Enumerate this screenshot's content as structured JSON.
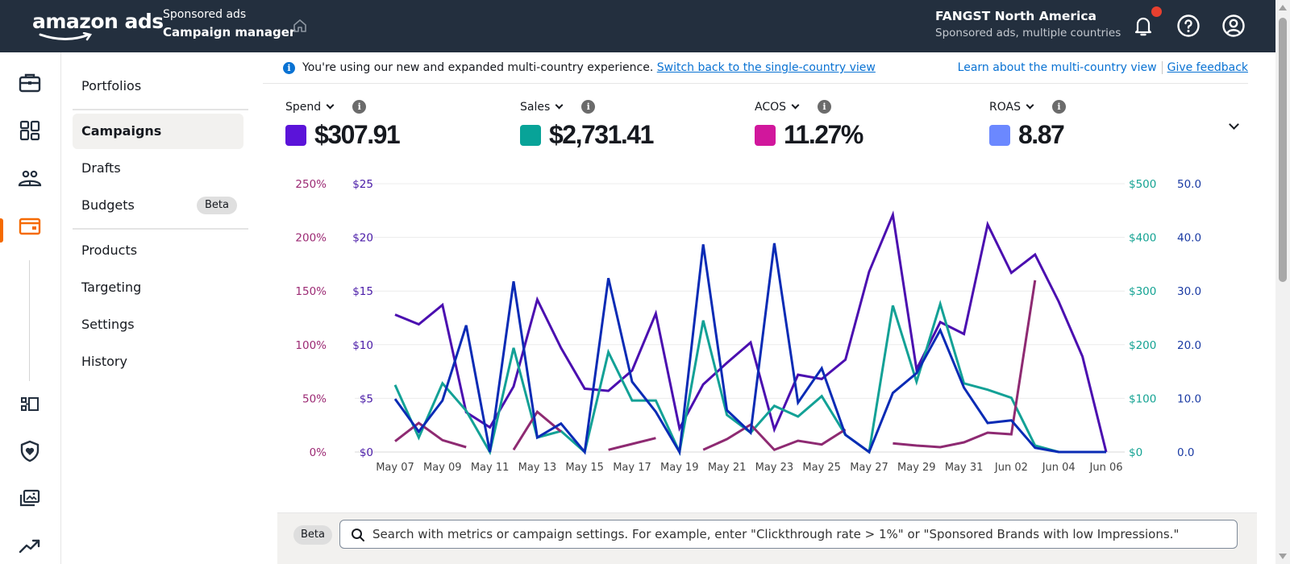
{
  "header": {
    "logo": "amazon ads",
    "app_subtitle": "Sponsored ads",
    "app_title": "Campaign manager",
    "account_name": "FANGST North America",
    "account_sub": "Sponsored ads, multiple countries",
    "has_notification": true
  },
  "rail": {
    "icons": [
      "briefcase-icon",
      "dashboard-icon",
      "audiences-icon",
      "campaigns-icon",
      "workflow-icon",
      "brand-safety-icon",
      "media-library-icon",
      "trending-icon"
    ],
    "active": "campaigns-icon",
    "accent": "#f56a00"
  },
  "subnav": {
    "items": [
      {
        "label": "Portfolios"
      },
      {
        "label": "Campaigns",
        "active": true
      },
      {
        "label": "Drafts"
      },
      {
        "label": "Budgets",
        "badge": "Beta"
      },
      {
        "label": "Products"
      },
      {
        "label": "Targeting"
      },
      {
        "label": "Settings"
      },
      {
        "label": "History"
      }
    ]
  },
  "banner": {
    "text": "You're using our new and expanded multi-country experience.",
    "switch_link": "Switch back to the single-country view",
    "learn_link": "Learn about the multi-country view",
    "feedback_link": "Give feedback"
  },
  "metrics": [
    {
      "label": "Spend",
      "value": "$307.91",
      "color": "#5b13d9"
    },
    {
      "label": "Sales",
      "value": "$2,731.41",
      "color": "#08a398"
    },
    {
      "label": "ACOS",
      "value": "11.27%",
      "color": "#d1179c"
    },
    {
      "label": "ROAS",
      "value": "8.87",
      "color": "#6b88ff"
    }
  ],
  "search": {
    "badge": "Beta",
    "placeholder": "Search with metrics or campaign settings. For example, enter \"Clickthrough rate > 1%\" or \"Sponsored Brands with low Impressions.\""
  },
  "chart_data": {
    "type": "line",
    "title": "",
    "x": [
      "May 07",
      "May 08",
      "May 09",
      "May 10",
      "May 11",
      "May 12",
      "May 13",
      "May 14",
      "May 15",
      "May 16",
      "May 17",
      "May 18",
      "May 19",
      "May 20",
      "May 21",
      "May 22",
      "May 23",
      "May 24",
      "May 25",
      "May 26",
      "May 27",
      "May 28",
      "May 29",
      "May 30",
      "May 31",
      "Jun 01",
      "Jun 02",
      "Jun 03",
      "Jun 04",
      "Jun 05",
      "Jun 06"
    ],
    "x_tick_labels": [
      "May 07",
      "May 09",
      "May 11",
      "May 13",
      "May 15",
      "May 17",
      "May 19",
      "May 21",
      "May 23",
      "May 25",
      "May 27",
      "May 29",
      "May 31",
      "Jun 02",
      "Jun 04",
      "Jun 06"
    ],
    "grid": true,
    "axes": {
      "acos": {
        "side": "left-outer",
        "ticks": [
          "0%",
          "50%",
          "100%",
          "150%",
          "200%",
          "250%"
        ],
        "range": [
          0,
          250
        ],
        "color": "#9c2a74"
      },
      "spend": {
        "side": "left-inner",
        "ticks": [
          "$0",
          "$5",
          "$10",
          "$15",
          "$20",
          "$25"
        ],
        "range": [
          0,
          25
        ],
        "color": "#4a1ba8"
      },
      "sales": {
        "side": "right-inner",
        "ticks": [
          "$0",
          "$100",
          "$200",
          "$300",
          "$400",
          "$500"
        ],
        "range": [
          0,
          500
        ],
        "color": "#14a393"
      },
      "roas": {
        "side": "right-outer",
        "ticks": [
          "0.0",
          "10.0",
          "20.0",
          "30.0",
          "40.0",
          "50.0"
        ],
        "range": [
          0,
          50
        ],
        "color": "#1a3aa3"
      }
    },
    "series": [
      {
        "name": "Spend",
        "axis": "spend",
        "color": "#4b0fb0",
        "values": [
          12.8,
          11.9,
          13.7,
          3.7,
          2.3,
          6.1,
          14.2,
          9.7,
          5.9,
          5.7,
          7.6,
          12.9,
          2.2,
          6.3,
          8.3,
          10.2,
          2.1,
          7.2,
          6.8,
          8.6,
          16.8,
          22.1,
          7.7,
          12.1,
          11.0,
          21.2,
          16.7,
          18.4,
          14.0,
          8.9,
          0
        ]
      },
      {
        "name": "Sales",
        "axis": "sales",
        "color": "#13a196",
        "values": [
          125,
          27,
          128,
          77,
          0,
          194,
          27,
          39,
          0,
          186,
          96,
          96,
          0,
          245,
          69,
          36,
          86,
          66,
          104,
          32,
          0,
          273,
          131,
          276,
          128,
          116,
          101,
          12,
          0,
          0,
          0
        ]
      },
      {
        "name": "ACOS",
        "axis": "acos",
        "color": "#8e2a72",
        "values": [
          10,
          27,
          11,
          4.5,
          null,
          2,
          37.5,
          19,
          null,
          2,
          7.5,
          13,
          null,
          2,
          12,
          25.5,
          2,
          10.5,
          7,
          21,
          null,
          8,
          6,
          4.5,
          9,
          18,
          16.5,
          160,
          null,
          null,
          null
        ]
      },
      {
        "name": "ROAS",
        "axis": "roas",
        "color": "#0a2bb5",
        "values": [
          9.9,
          3.8,
          9.6,
          23.6,
          0,
          31.8,
          2.7,
          5.3,
          0,
          32.4,
          13.1,
          7.5,
          0,
          38.7,
          7.8,
          3.6,
          38.9,
          9.2,
          15.6,
          3.2,
          0,
          11.0,
          14.7,
          22.7,
          12.0,
          5.4,
          5.9,
          0.8,
          0,
          0,
          0
        ]
      }
    ]
  }
}
